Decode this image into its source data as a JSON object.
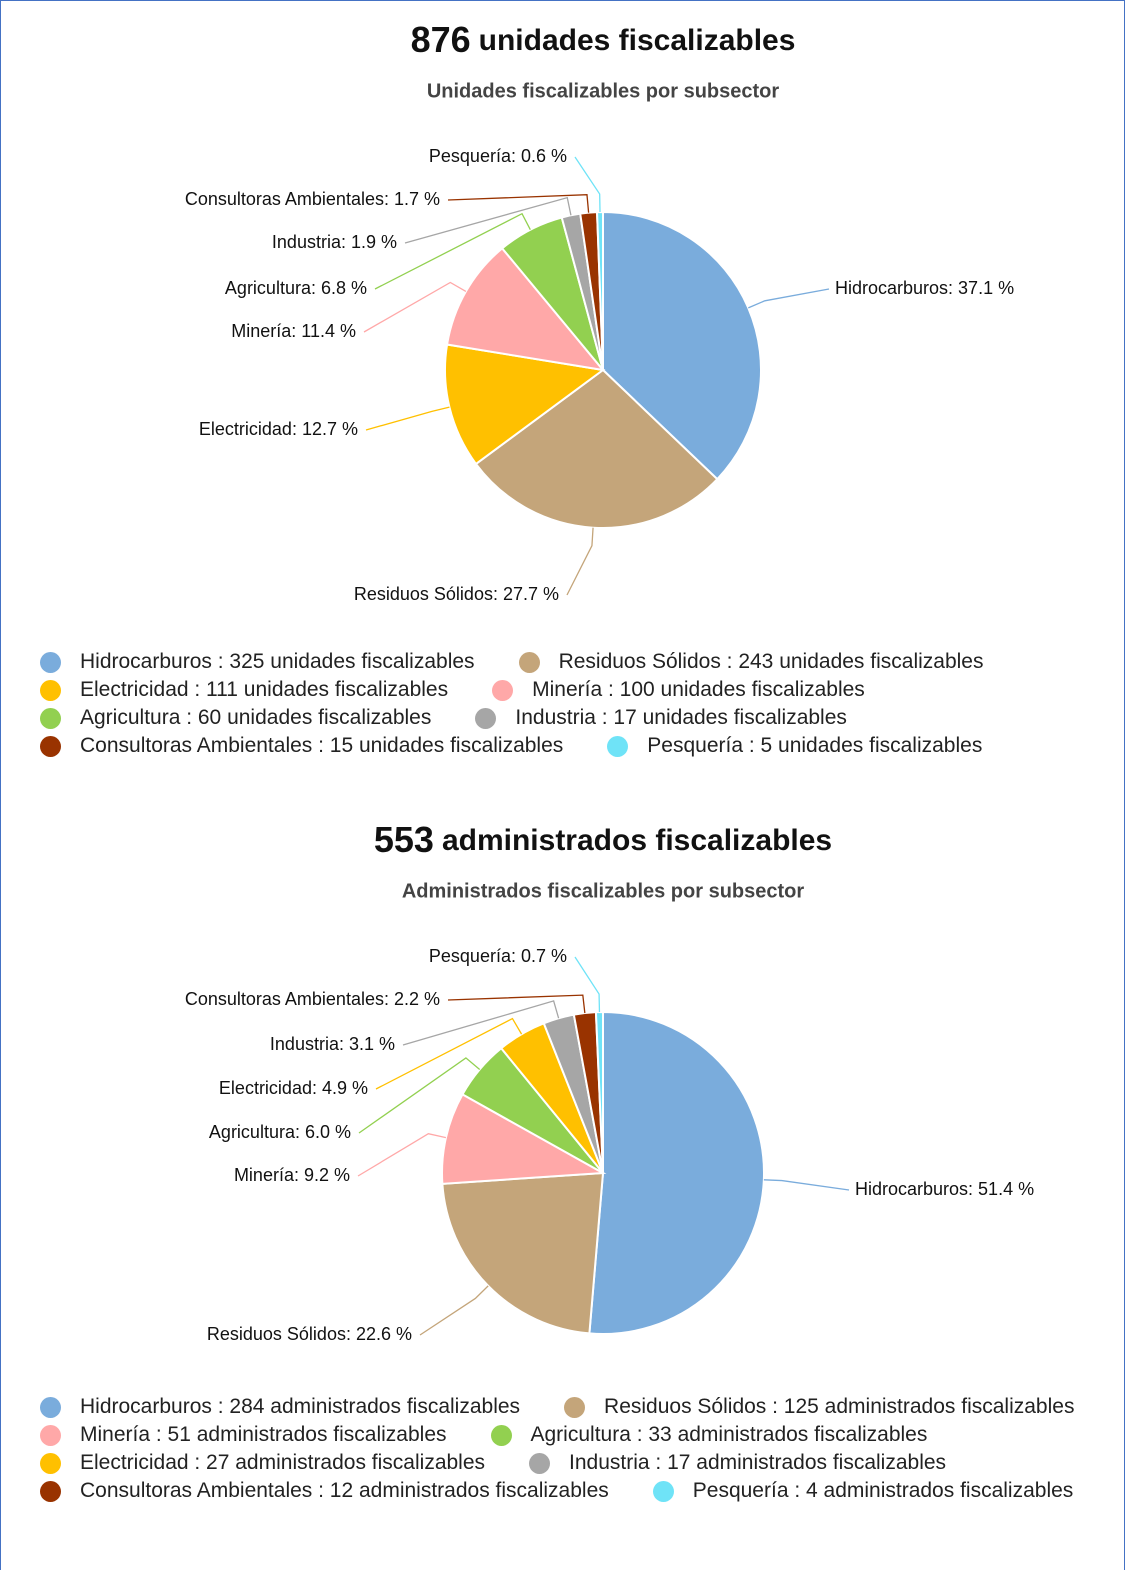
{
  "chart_data": [
    {
      "type": "pie",
      "title": [
        "876",
        "unidades fiscalizables"
      ],
      "subtitle": "Unidades fiscalizables por subsector",
      "categories": [
        "Hidrocarburos",
        "Residuos Sólidos",
        "Electricidad",
        "Minería",
        "Agricultura",
        "Industria",
        "Consultoras Ambientales",
        "Pesquería"
      ],
      "values": [
        37.1,
        27.7,
        12.7,
        11.4,
        6.8,
        1.9,
        1.7,
        0.6
      ],
      "value_labels": [
        "Hidrocarburos: 37.1 %",
        "Residuos Sólidos: 27.7 %",
        "Electricidad: 12.7 %",
        "Minería: 11.4 %",
        "Agricultura: 6.8 %",
        "Industria: 1.9 %",
        "Consultoras Ambientales: 1.7 %",
        "Pesquería: 0.6 %"
      ],
      "colors": [
        "#7aacdc",
        "#c4a57a",
        "#ffc000",
        "#ffa8a8",
        "#92d050",
        "#a6a6a6",
        "#993300",
        "#6fe3f7"
      ],
      "legend": [
        "Hidrocarburos : 325 unidades fiscalizables",
        "Residuos Sólidos : 243 unidades fiscalizables",
        "Electricidad : 111 unidades fiscalizables",
        "Minería : 100 unidades fiscalizables",
        "Agricultura : 60 unidades fiscalizables",
        "Industria : 17 unidades fiscalizables",
        "Consultoras Ambientales : 15 unidades fiscalizables",
        "Pesquería : 5 unidades fiscalizables"
      ]
    },
    {
      "type": "pie",
      "title": [
        "553",
        "administrados fiscalizables"
      ],
      "subtitle": "Administrados fiscalizables por subsector",
      "categories": [
        "Hidrocarburos",
        "Residuos Sólidos",
        "Minería",
        "Agricultura",
        "Electricidad",
        "Industria",
        "Consultoras Ambientales",
        "Pesquería"
      ],
      "values": [
        51.4,
        22.6,
        9.2,
        6.0,
        4.9,
        3.1,
        2.2,
        0.7
      ],
      "value_labels": [
        "Hidrocarburos: 51.4 %",
        "Residuos Sólidos: 22.6 %",
        "Minería: 9.2 %",
        "Agricultura: 6.0 %",
        "Electricidad: 4.9 %",
        "Industria: 3.1 %",
        "Consultoras Ambientales: 2.2 %",
        "Pesquería: 0.7 %"
      ],
      "colors": [
        "#7aacdc",
        "#c4a57a",
        "#ffa8a8",
        "#92d050",
        "#ffc000",
        "#a6a6a6",
        "#993300",
        "#6fe3f7"
      ],
      "legend": [
        "Hidrocarburos : 284 administrados fiscalizables",
        "Residuos Sólidos : 125 administrados fiscalizables",
        "Minería : 51 administrados fiscalizables",
        "Agricultura : 33 administrados fiscalizables",
        "Electricidad : 27 administrados fiscalizables",
        "Industria : 17 administrados fiscalizables",
        "Consultoras Ambientales : 12 administrados fiscalizables",
        "Pesquería : 4 administrados fiscalizables"
      ]
    }
  ]
}
